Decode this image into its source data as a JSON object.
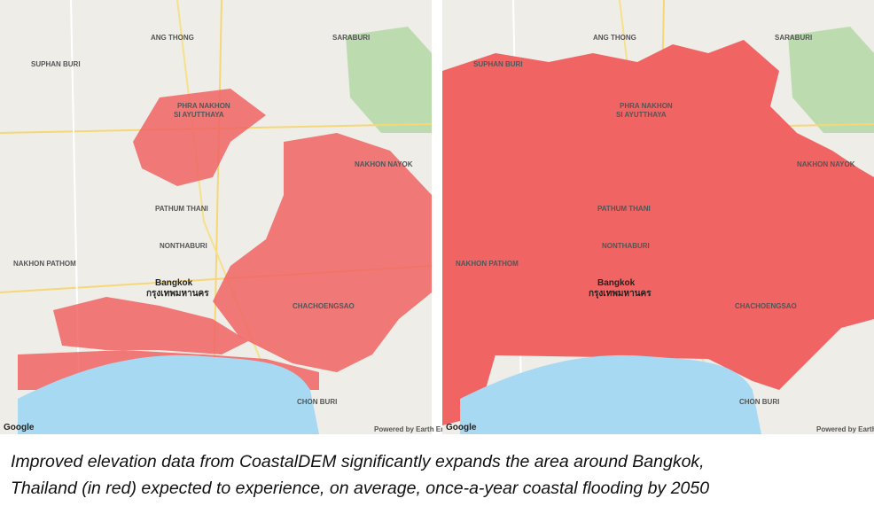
{
  "panels": [
    {
      "labels": [
        "ANG THONG",
        "SARABURI",
        "SUPHAN BURI",
        "PHRA NAKHON",
        "SI AYUTTHAYA",
        "PATHUM THANI",
        "NONTHABURI",
        "NAKHON PATHOM",
        "Bangkok",
        "กรุงเทพมหานคร",
        "CHACHOENGSAO",
        "NAKHON NAYOK",
        "CHON BURI",
        "Google",
        "Powered by Earth Engine"
      ]
    },
    {
      "labels": [
        "ANG THONG",
        "SARABURI",
        "SUPHAN BURI",
        "PHRA NAKHON",
        "SI AYUTTHAYA",
        "PATHUM THANI",
        "NONTHABURI",
        "NAKHON PATHOM",
        "Bangkok",
        "กรุงเทพมหานคร",
        "CHACHOENGSAO",
        "NAKHON NAYOK",
        "CHON BURI",
        "Google",
        "Powered by Earth Engine"
      ]
    }
  ],
  "caption": [
    "Improved elevation data from CoastalDEM significantly expands the area around Bangkok,",
    "Thailand (in red) expected to experience, on average, once-a-year coastal flooding by 2050"
  ]
}
